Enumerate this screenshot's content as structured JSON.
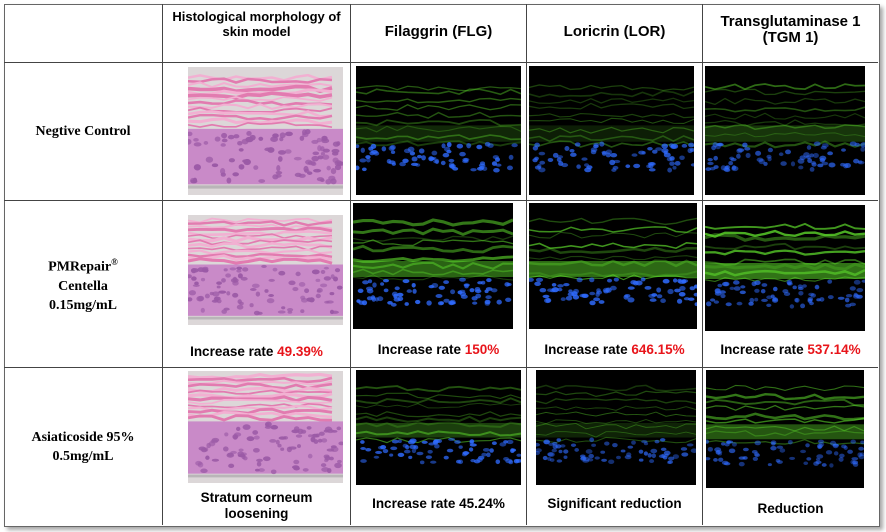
{
  "header": {
    "corner": "",
    "histology": "Histological morphology of skin model",
    "flg": "Filaggrin (FLG)",
    "lor": "Loricrin (LOR)",
    "tgm": "Transglutaminase 1 (TGM 1)"
  },
  "rows": [
    {
      "label": "Negtive Control",
      "captions": []
    },
    {
      "label_line1": "PMRepair",
      "label_sup": "®",
      "label_line2": "Centella",
      "label_line3": "0.15mg/mL",
      "captions": {
        "histology": {
          "prefix": "Increase rate ",
          "value": "49.39%"
        },
        "flg": {
          "prefix": "Increase rate ",
          "value": "150%"
        },
        "lor": {
          "prefix": "Increase rate ",
          "value": "646.15%"
        },
        "tgm": {
          "prefix": "Increase rate ",
          "value": "537.14%"
        }
      }
    },
    {
      "label_line1": "Asiaticoside 95%",
      "label_line2": "0.5mg/mL",
      "captions": {
        "histology": "Stratum corneum loosening",
        "flg": "Increase rate 45.24%",
        "lor": "Significant reduction",
        "tgm": "Reduction"
      }
    }
  ],
  "colors": {
    "highlight": "#e8141a",
    "he_pink": "#e27bb0",
    "he_purple": "#9b5aa6",
    "fluor_green": "#5ad22a",
    "dapi_blue": "#2f6bff"
  }
}
